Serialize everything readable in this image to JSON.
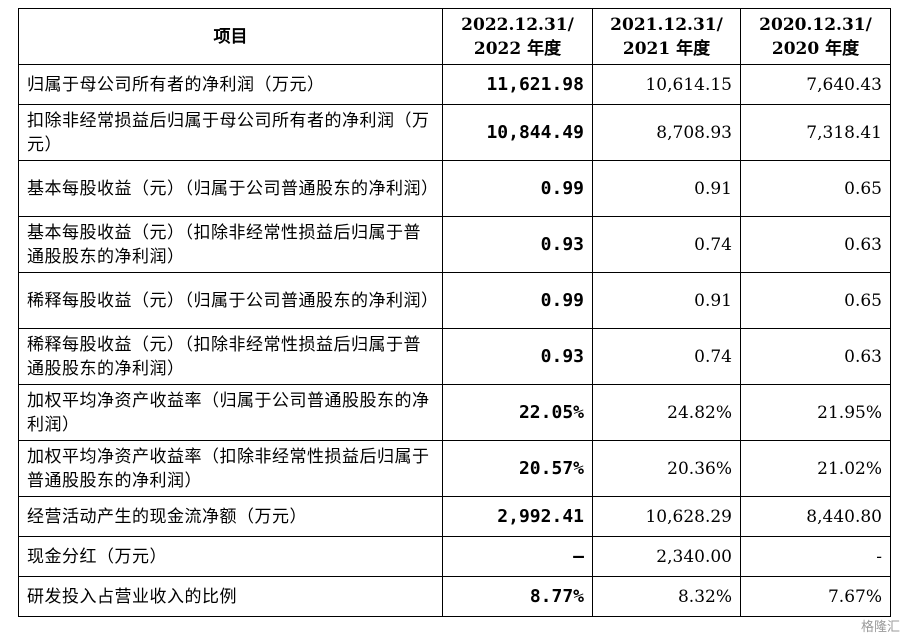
{
  "table": {
    "headers": {
      "item": "项目",
      "c1_line1": "2022.12.31/",
      "c1_line2": "2022 年度",
      "c2_line1": "2021.12.31/",
      "c2_line2": "2021 年度",
      "c3_line1": "2020.12.31/",
      "c3_line2": "2020 年度"
    },
    "rows": [
      {
        "label": "归属于母公司所有者的净利润（万元）",
        "v2022": "11,621.98",
        "v2021": "10,614.15",
        "v2020": "7,640.43"
      },
      {
        "label": "扣除非经常损益后归属于母公司所有者的净利润（万元）",
        "v2022": "10,844.49",
        "v2021": "8,708.93",
        "v2020": "7,318.41"
      },
      {
        "label": "基本每股收益（元）（归属于公司普通股东的净利润）",
        "v2022": "0.99",
        "v2021": "0.91",
        "v2020": "0.65"
      },
      {
        "label": "基本每股收益（元）（扣除非经常性损益后归属于普通股股东的净利润）",
        "v2022": "0.93",
        "v2021": "0.74",
        "v2020": "0.63"
      },
      {
        "label": "稀释每股收益（元）（归属于公司普通股东的净利润）",
        "v2022": "0.99",
        "v2021": "0.91",
        "v2020": "0.65"
      },
      {
        "label": "稀释每股收益（元）（扣除非经常性损益后归属于普通股股东的净利润）",
        "v2022": "0.93",
        "v2021": "0.74",
        "v2020": "0.63"
      },
      {
        "label": "加权平均净资产收益率（归属于公司普通股股东的净利润）",
        "v2022": "22.05%",
        "v2021": "24.82%",
        "v2020": "21.95%"
      },
      {
        "label": "加权平均净资产收益率（扣除非经常性损益后归属于普通股股东的净利润）",
        "v2022": "20.57%",
        "v2021": "20.36%",
        "v2020": "21.02%"
      },
      {
        "label": "经营活动产生的现金流净额（万元）",
        "v2022": "2,992.41",
        "v2021": "10,628.29",
        "v2020": "8,440.80"
      },
      {
        "label": "现金分红（万元）",
        "v2022": "–",
        "v2021": "2,340.00",
        "v2020": "-"
      },
      {
        "label": "研发投入占营业收入的比例",
        "v2022": "8.77%",
        "v2021": "8.32%",
        "v2020": "7.67%"
      }
    ]
  },
  "watermark": "格隆汇"
}
